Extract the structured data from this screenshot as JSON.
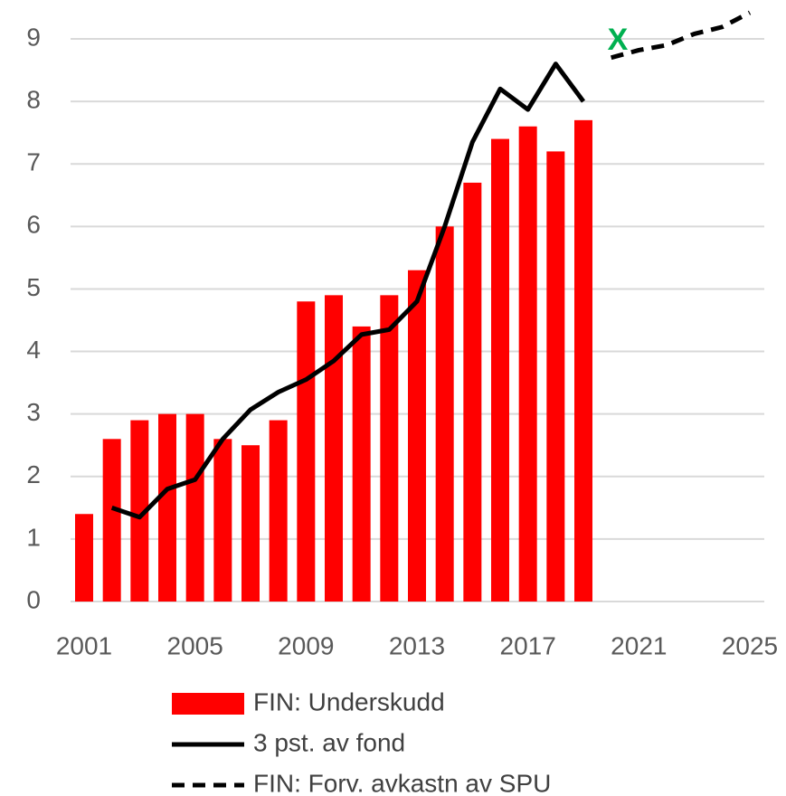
{
  "chart_data": {
    "type": "bar",
    "categories": [
      "2001",
      null,
      null,
      null,
      "2005",
      null,
      null,
      null,
      "2009",
      null,
      null,
      null,
      "2013",
      null,
      null,
      null,
      "2017",
      null,
      null,
      null,
      "2021",
      null,
      null,
      null,
      "2025"
    ],
    "series": [
      {
        "name": "FIN: Underskudd",
        "type": "bar",
        "color": "#ff0000",
        "values": [
          1.4,
          2.6,
          2.9,
          3.0,
          3.0,
          2.6,
          2.5,
          2.9,
          4.8,
          4.9,
          4.4,
          4.9,
          5.3,
          6.0,
          6.7,
          7.4,
          7.6,
          7.2,
          7.7,
          null,
          null,
          null,
          null,
          null,
          null
        ]
      },
      {
        "name": "3 pst. av fond",
        "type": "line",
        "color": "#000000",
        "dashed": false,
        "values": [
          null,
          1.5,
          1.35,
          1.8,
          1.95,
          2.6,
          3.07,
          3.35,
          3.55,
          3.85,
          4.27,
          4.35,
          4.8,
          6.0,
          7.35,
          8.2,
          7.87,
          8.6,
          8.0,
          null,
          null,
          null,
          null,
          null,
          null
        ]
      },
      {
        "name": "FIN: Forv. avkastn av SPU",
        "type": "line",
        "color": "#000000",
        "dashed": true,
        "values": [
          null,
          null,
          null,
          null,
          null,
          null,
          null,
          null,
          null,
          null,
          null,
          null,
          null,
          null,
          null,
          null,
          null,
          null,
          null,
          8.7,
          8.82,
          8.9,
          9.08,
          9.19,
          9.42
        ]
      }
    ],
    "annotation": "X",
    "annotation_color": "#00b050",
    "ylim": [
      0,
      9
    ],
    "yticks": [
      0,
      1,
      2,
      3,
      4,
      5,
      6,
      7,
      8,
      9
    ],
    "grid": true
  }
}
